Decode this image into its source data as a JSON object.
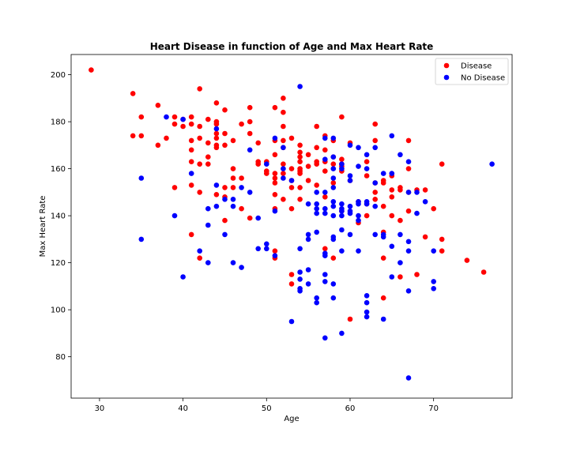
{
  "chart_data": {
    "type": "scatter",
    "title": "Heart Disease in function of Age and Max Heart Rate",
    "xlabel": "Age",
    "ylabel": "Max Heart Rate",
    "xlim": [
      26.6,
      79.4
    ],
    "ylim": [
      62.4,
      208.6
    ],
    "xticks": [
      30,
      40,
      50,
      60,
      70
    ],
    "yticks": [
      80,
      100,
      120,
      140,
      160,
      180,
      200
    ],
    "grid": false,
    "legend_position": "top-right",
    "series": [
      {
        "name": "Disease",
        "color": "#ff0000",
        "points": [
          [
            29,
            202
          ],
          [
            34,
            192
          ],
          [
            34,
            174
          ],
          [
            35,
            182
          ],
          [
            35,
            174
          ],
          [
            37,
            187
          ],
          [
            37,
            170
          ],
          [
            38,
            173
          ],
          [
            39,
            182
          ],
          [
            39,
            179
          ],
          [
            39,
            152
          ],
          [
            40,
            178
          ],
          [
            40,
            181
          ],
          [
            41,
            182
          ],
          [
            41,
            179
          ],
          [
            41,
            172
          ],
          [
            41,
            168
          ],
          [
            41,
            163
          ],
          [
            41,
            153
          ],
          [
            41,
            132
          ],
          [
            42,
            194
          ],
          [
            42,
            178
          ],
          [
            42,
            173
          ],
          [
            42,
            162
          ],
          [
            42,
            150
          ],
          [
            42,
            122
          ],
          [
            43,
            181
          ],
          [
            43,
            171
          ],
          [
            43,
            165
          ],
          [
            43,
            162
          ],
          [
            44,
            188
          ],
          [
            44,
            180
          ],
          [
            44,
            179
          ],
          [
            44,
            175
          ],
          [
            44,
            173
          ],
          [
            44,
            170
          ],
          [
            44,
            169
          ],
          [
            44,
            149
          ],
          [
            45,
            185
          ],
          [
            45,
            175
          ],
          [
            45,
            170
          ],
          [
            45,
            152
          ],
          [
            45,
            148
          ],
          [
            45,
            138
          ],
          [
            46,
            172
          ],
          [
            46,
            160
          ],
          [
            46,
            156
          ],
          [
            46,
            152
          ],
          [
            47,
            179
          ],
          [
            47,
            156
          ],
          [
            47,
            143
          ],
          [
            48,
            186
          ],
          [
            48,
            180
          ],
          [
            48,
            175
          ],
          [
            48,
            139
          ],
          [
            49,
            171
          ],
          [
            49,
            163
          ],
          [
            49,
            162
          ],
          [
            50,
            163
          ],
          [
            50,
            159
          ],
          [
            50,
            158
          ],
          [
            51,
            186
          ],
          [
            51,
            172
          ],
          [
            51,
            166
          ],
          [
            51,
            158
          ],
          [
            51,
            156
          ],
          [
            51,
            154
          ],
          [
            51,
            149
          ],
          [
            51,
            143
          ],
          [
            51,
            125
          ],
          [
            51,
            122
          ],
          [
            52,
            190
          ],
          [
            52,
            184
          ],
          [
            52,
            178
          ],
          [
            52,
            172
          ],
          [
            52,
            169
          ],
          [
            52,
            162
          ],
          [
            52,
            158
          ],
          [
            52,
            147
          ],
          [
            53,
            173
          ],
          [
            53,
            160
          ],
          [
            53,
            155
          ],
          [
            53,
            152
          ],
          [
            53,
            143
          ],
          [
            53,
            115
          ],
          [
            53,
            111
          ],
          [
            54,
            170
          ],
          [
            54,
            167
          ],
          [
            54,
            165
          ],
          [
            54,
            163
          ],
          [
            54,
            160
          ],
          [
            54,
            159
          ],
          [
            54,
            158
          ],
          [
            54,
            152
          ],
          [
            54,
            147
          ],
          [
            55,
            166
          ],
          [
            55,
            161
          ],
          [
            55,
            155
          ],
          [
            56,
            178
          ],
          [
            56,
            169
          ],
          [
            56,
            163
          ],
          [
            56,
            162
          ],
          [
            56,
            153
          ],
          [
            57,
            174
          ],
          [
            57,
            168
          ],
          [
            57,
            163
          ],
          [
            57,
            159
          ],
          [
            57,
            148
          ],
          [
            57,
            126
          ],
          [
            58,
            172
          ],
          [
            58,
            165
          ],
          [
            58,
            162
          ],
          [
            58,
            154
          ],
          [
            58,
            122
          ],
          [
            59,
            182
          ],
          [
            59,
            164
          ],
          [
            59,
            162
          ],
          [
            59,
            161
          ],
          [
            59,
            159
          ],
          [
            59,
            142
          ],
          [
            60,
            171
          ],
          [
            60,
            155
          ],
          [
            60,
            96
          ],
          [
            61,
            146
          ],
          [
            61,
            137
          ],
          [
            62,
            163
          ],
          [
            62,
            157
          ],
          [
            62,
            145
          ],
          [
            62,
            140
          ],
          [
            63,
            179
          ],
          [
            63,
            172
          ],
          [
            63,
            154
          ],
          [
            63,
            150
          ],
          [
            63,
            147
          ],
          [
            64,
            155
          ],
          [
            64,
            154
          ],
          [
            64,
            144
          ],
          [
            64,
            133
          ],
          [
            64,
            122
          ],
          [
            64,
            105
          ],
          [
            65,
            157
          ],
          [
            65,
            151
          ],
          [
            65,
            148
          ],
          [
            65,
            140
          ],
          [
            66,
            152
          ],
          [
            66,
            151
          ],
          [
            66,
            138
          ],
          [
            66,
            114
          ],
          [
            67,
            172
          ],
          [
            67,
            160
          ],
          [
            67,
            150
          ],
          [
            67,
            142
          ],
          [
            68,
            151
          ],
          [
            68,
            115
          ],
          [
            69,
            151
          ],
          [
            69,
            131
          ],
          [
            70,
            143
          ],
          [
            71,
            162
          ],
          [
            71,
            130
          ],
          [
            71,
            125
          ],
          [
            74,
            121
          ],
          [
            76,
            116
          ]
        ]
      },
      {
        "name": "No Disease",
        "color": "#0000ff",
        "points": [
          [
            35,
            156
          ],
          [
            35,
            130
          ],
          [
            38,
            182
          ],
          [
            39,
            140
          ],
          [
            40,
            181
          ],
          [
            40,
            114
          ],
          [
            41,
            158
          ],
          [
            42,
            125
          ],
          [
            43,
            143
          ],
          [
            43,
            136
          ],
          [
            43,
            120
          ],
          [
            44,
            177
          ],
          [
            44,
            153
          ],
          [
            44,
            144
          ],
          [
            45,
            147
          ],
          [
            45,
            132
          ],
          [
            46,
            147
          ],
          [
            46,
            144
          ],
          [
            46,
            120
          ],
          [
            47,
            152
          ],
          [
            47,
            118
          ],
          [
            48,
            168
          ],
          [
            48,
            150
          ],
          [
            49,
            139
          ],
          [
            49,
            126
          ],
          [
            50,
            162
          ],
          [
            50,
            128
          ],
          [
            50,
            126
          ],
          [
            51,
            173
          ],
          [
            51,
            142
          ],
          [
            51,
            123
          ],
          [
            52,
            169
          ],
          [
            52,
            160
          ],
          [
            52,
            156
          ],
          [
            53,
            155
          ],
          [
            53,
            95
          ],
          [
            54,
            195
          ],
          [
            54,
            126
          ],
          [
            54,
            116
          ],
          [
            54,
            113
          ],
          [
            54,
            109
          ],
          [
            54,
            108
          ],
          [
            55,
            145
          ],
          [
            55,
            132
          ],
          [
            55,
            130
          ],
          [
            55,
            117
          ],
          [
            55,
            111
          ],
          [
            56,
            150
          ],
          [
            56,
            145
          ],
          [
            56,
            143
          ],
          [
            56,
            141
          ],
          [
            56,
            133
          ],
          [
            56,
            105
          ],
          [
            56,
            103
          ],
          [
            57,
            173
          ],
          [
            57,
            164
          ],
          [
            57,
            150
          ],
          [
            57,
            143
          ],
          [
            57,
            141
          ],
          [
            57,
            124
          ],
          [
            57,
            123
          ],
          [
            57,
            115
          ],
          [
            57,
            112
          ],
          [
            57,
            88
          ],
          [
            58,
            173
          ],
          [
            58,
            165
          ],
          [
            58,
            160
          ],
          [
            58,
            156
          ],
          [
            58,
            152
          ],
          [
            58,
            146
          ],
          [
            58,
            144
          ],
          [
            58,
            140
          ],
          [
            58,
            131
          ],
          [
            58,
            130
          ],
          [
            58,
            111
          ],
          [
            58,
            105
          ],
          [
            59,
            162
          ],
          [
            59,
            160
          ],
          [
            59,
            145
          ],
          [
            59,
            143
          ],
          [
            59,
            142
          ],
          [
            59,
            140
          ],
          [
            59,
            134
          ],
          [
            59,
            125
          ],
          [
            59,
            90
          ],
          [
            60,
            170
          ],
          [
            60,
            157
          ],
          [
            60,
            155
          ],
          [
            60,
            144
          ],
          [
            60,
            142
          ],
          [
            60,
            141
          ],
          [
            60,
            132
          ],
          [
            61,
            169
          ],
          [
            61,
            161
          ],
          [
            61,
            146
          ],
          [
            61,
            145
          ],
          [
            61,
            140
          ],
          [
            61,
            138
          ],
          [
            61,
            125
          ],
          [
            62,
            166
          ],
          [
            62,
            160
          ],
          [
            62,
            146
          ],
          [
            62,
            145
          ],
          [
            62,
            106
          ],
          [
            62,
            103
          ],
          [
            62,
            99
          ],
          [
            62,
            97
          ],
          [
            63,
            169
          ],
          [
            63,
            154
          ],
          [
            63,
            144
          ],
          [
            63,
            132
          ],
          [
            64,
            158
          ],
          [
            64,
            132
          ],
          [
            64,
            131
          ],
          [
            64,
            96
          ],
          [
            65,
            174
          ],
          [
            65,
            158
          ],
          [
            65,
            127
          ],
          [
            65,
            114
          ],
          [
            66,
            166
          ],
          [
            66,
            132
          ],
          [
            66,
            120
          ],
          [
            67,
            163
          ],
          [
            67,
            150
          ],
          [
            67,
            129
          ],
          [
            67,
            125
          ],
          [
            67,
            108
          ],
          [
            67,
            71
          ],
          [
            68,
            150
          ],
          [
            68,
            141
          ],
          [
            69,
            146
          ],
          [
            70,
            125
          ],
          [
            70,
            112
          ],
          [
            70,
            109
          ],
          [
            77,
            162
          ]
        ]
      }
    ]
  }
}
